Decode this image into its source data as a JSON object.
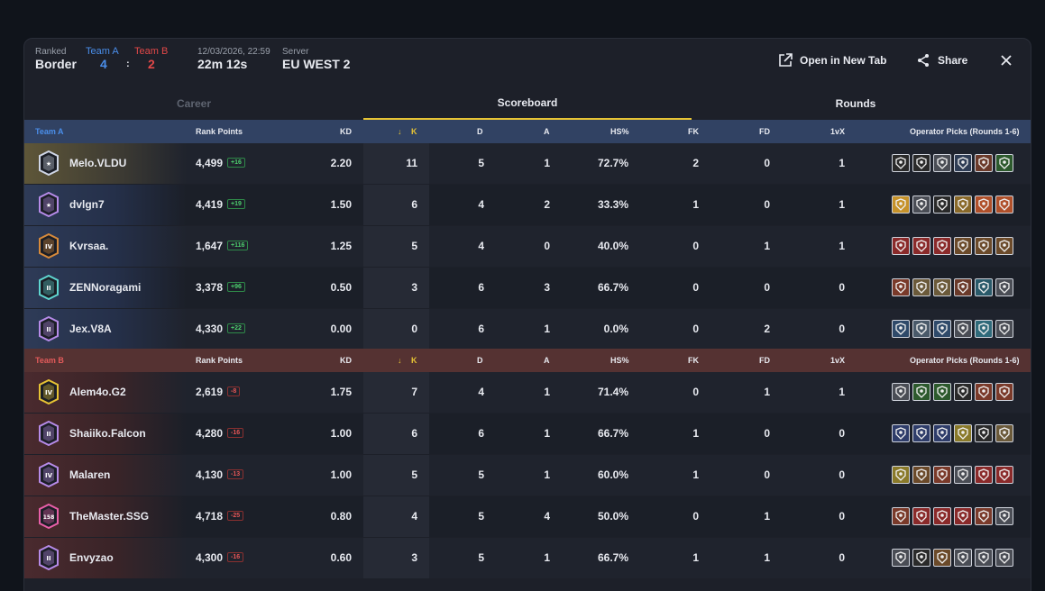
{
  "match": {
    "mode_label": "Ranked",
    "map": "Border",
    "teamA_label": "Team A",
    "teamB_label": "Team B",
    "teamA_score": "4",
    "separator": ":",
    "teamB_score": "2",
    "datetime": "12/03/2026, 22:59",
    "duration": "22m 12s",
    "server_label": "Server",
    "server": "EU WEST 2"
  },
  "actions": {
    "open_new_tab": "Open in New Tab",
    "share": "Share"
  },
  "tabs": [
    "Career",
    "Scoreboard",
    "Rounds"
  ],
  "columns": {
    "rank_points": "Rank Points",
    "kd": "KD",
    "k": "K",
    "d": "D",
    "a": "A",
    "hs": "HS%",
    "fk": "FK",
    "fd": "FD",
    "onevx": "1vX",
    "ops": "Operator Picks (Rounds 1-6)"
  },
  "teamA": {
    "label": "Team A",
    "players": [
      {
        "name": "Melo.VLDU",
        "rp": "4,499",
        "delta": "+16",
        "kd": "2.20",
        "k": "11",
        "d": "5",
        "a": "1",
        "hs": "72.7%",
        "fk": "2",
        "fd": "0",
        "onevx": "1",
        "rank_color": "#cfd6e6",
        "rank_text": "★",
        "ops": [
          "#2a2a2a",
          "#2a2a2a",
          "#4a4d55",
          "#2f3d55",
          "#6b3a2a",
          "#2d5a2d"
        ]
      },
      {
        "name": "dvlgn7",
        "rp": "4,419",
        "delta": "+19",
        "kd": "1.50",
        "k": "6",
        "d": "4",
        "a": "2",
        "hs": "33.3%",
        "fk": "1",
        "fd": "0",
        "onevx": "1",
        "rank_color": "#b68be8",
        "rank_text": "★",
        "ops": [
          "#c6922a",
          "#4a4d55",
          "#2a2a2a",
          "#8a6a2a",
          "#b0502a",
          "#b0502a"
        ]
      },
      {
        "name": "Kvrsaa.",
        "rp": "1,647",
        "delta": "+116",
        "kd": "1.25",
        "k": "5",
        "d": "4",
        "a": "0",
        "hs": "40.0%",
        "fk": "0",
        "fd": "1",
        "onevx": "1",
        "rank_color": "#d78a3a",
        "rank_text": "IV",
        "ops": [
          "#8a2a2a",
          "#8a2a2a",
          "#8a2a2a",
          "#6b4a2a",
          "#6b4a2a",
          "#6b4a2a"
        ]
      },
      {
        "name": "ZENNoragami",
        "rp": "3,378",
        "delta": "+96",
        "kd": "0.50",
        "k": "3",
        "d": "6",
        "a": "3",
        "hs": "66.7%",
        "fk": "0",
        "fd": "0",
        "onevx": "0",
        "rank_color": "#5fd6d0",
        "rank_text": "II",
        "ops": [
          "#7a3a2a",
          "#6b5a3a",
          "#6b5a3a",
          "#6b3a2a",
          "#2a5a6a",
          "#4a4d55"
        ]
      },
      {
        "name": "Jex.V8A",
        "rp": "4,330",
        "delta": "+22",
        "kd": "0.00",
        "k": "0",
        "d": "6",
        "a": "1",
        "hs": "0.0%",
        "fk": "0",
        "fd": "2",
        "onevx": "0",
        "rank_color": "#b68be8",
        "rank_text": "II",
        "ops": [
          "#2f4a6a",
          "#4a5a6a",
          "#2f4a6a",
          "#4a4d55",
          "#2f6a7a",
          "#4a4d55"
        ]
      }
    ]
  },
  "teamB": {
    "label": "Team B",
    "players": [
      {
        "name": "Alem4o.G2",
        "rp": "2,619",
        "delta": "-8",
        "kd": "1.75",
        "k": "7",
        "d": "4",
        "a": "1",
        "hs": "71.4%",
        "fk": "0",
        "fd": "1",
        "onevx": "1",
        "rank_color": "#e6c334",
        "rank_text": "IV",
        "ops": [
          "#4a4d55",
          "#2d5a2d",
          "#2d5a2d",
          "#2a2a2a",
          "#7a3a2a",
          "#7a3a2a"
        ]
      },
      {
        "name": "Shaiiko.Falcon",
        "rp": "4,280",
        "delta": "-16",
        "kd": "1.00",
        "k": "6",
        "d": "6",
        "a": "1",
        "hs": "66.7%",
        "fk": "1",
        "fd": "0",
        "onevx": "0",
        "rank_color": "#b68be8",
        "rank_text": "II",
        "ops": [
          "#2f3d6a",
          "#2f3d6a",
          "#2f3d6a",
          "#8a7a2a",
          "#2a2a2a",
          "#6b5a3a"
        ]
      },
      {
        "name": "Malaren",
        "rp": "4,130",
        "delta": "-13",
        "kd": "1.00",
        "k": "5",
        "d": "5",
        "a": "1",
        "hs": "60.0%",
        "fk": "1",
        "fd": "0",
        "onevx": "0",
        "rank_color": "#b68be8",
        "rank_text": "IV",
        "ops": [
          "#8a7a2a",
          "#6b4a2a",
          "#7a3a2a",
          "#4a4d55",
          "#8a2a2a",
          "#8a2a2a"
        ]
      },
      {
        "name": "TheMaster.SSG",
        "rp": "4,718",
        "delta": "-25",
        "kd": "0.80",
        "k": "4",
        "d": "5",
        "a": "4",
        "hs": "50.0%",
        "fk": "0",
        "fd": "1",
        "onevx": "0",
        "rank_color": "#e85fa8",
        "rank_text": "158",
        "ops": [
          "#7a3a2a",
          "#8a2a2a",
          "#8a2a2a",
          "#8a2a2a",
          "#7a3a2a",
          "#4a4d55"
        ]
      },
      {
        "name": "Envyzao",
        "rp": "4,300",
        "delta": "-16",
        "kd": "0.60",
        "k": "3",
        "d": "5",
        "a": "1",
        "hs": "66.7%",
        "fk": "1",
        "fd": "1",
        "onevx": "0",
        "rank_color": "#b68be8",
        "rank_text": "II",
        "ops": [
          "#4a4d55",
          "#2a2a2a",
          "#6b4a2a",
          "#4a4d55",
          "#4a4d55",
          "#4a4d55"
        ]
      }
    ]
  }
}
